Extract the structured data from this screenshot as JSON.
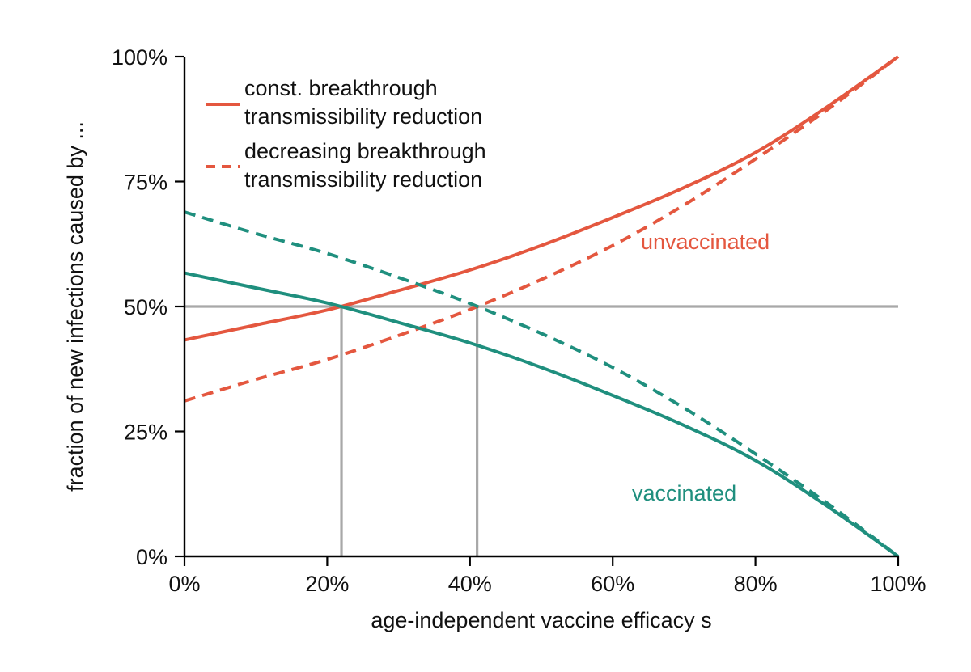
{
  "chart_data": {
    "type": "line",
    "title": "",
    "xlabel": "age-independent vaccine efficacy s",
    "ylabel": "fraction of new infections caused by ...",
    "xlim": [
      0,
      100
    ],
    "ylim": [
      0,
      100
    ],
    "x_ticks": [
      0,
      20,
      40,
      60,
      80,
      100
    ],
    "x_tick_labels": [
      "0%",
      "20%",
      "40%",
      "60%",
      "80%",
      "100%"
    ],
    "y_ticks": [
      0,
      25,
      50,
      75,
      100
    ],
    "y_tick_labels": [
      "0%",
      "25%",
      "50%",
      "75%",
      "100%"
    ],
    "grid": false,
    "legend_position": "top-left",
    "legend": [
      {
        "label_line1": "const. breakthrough",
        "label_line2": "transmissibility reduction",
        "style": "solid"
      },
      {
        "label_line1": "decreasing breakthrough",
        "label_line2": "transmissibility reduction",
        "style": "dashed"
      }
    ],
    "annotations": {
      "unvaccinated": "unvaccinated",
      "vaccinated": "vaccinated"
    },
    "colors": {
      "unvaccinated": "#e4573f",
      "vaccinated": "#1f8f7e",
      "reference": "#a8a8a8",
      "axis": "#000000"
    },
    "reference_lines": {
      "horizontal_y": 50,
      "vertical_x": [
        22,
        41
      ]
    },
    "x": [
      0,
      10,
      20,
      30,
      40,
      50,
      60,
      70,
      80,
      90,
      100
    ],
    "series": [
      {
        "group": "unvaccinated",
        "style": "solid",
        "values": [
          43.3,
          46.3,
          49.3,
          53.2,
          57.3,
          62.2,
          67.8,
          73.8,
          80.8,
          89.9,
          100
        ]
      },
      {
        "group": "unvaccinated",
        "style": "dashed",
        "values": [
          31.1,
          35.4,
          39.4,
          44.2,
          49.4,
          55.4,
          62.2,
          70.3,
          79.5,
          89.3,
          100
        ]
      },
      {
        "group": "vaccinated",
        "style": "solid",
        "values": [
          56.7,
          53.7,
          50.7,
          46.8,
          42.7,
          37.8,
          32.2,
          26.2,
          19.2,
          10.1,
          0
        ]
      },
      {
        "group": "vaccinated",
        "style": "dashed",
        "values": [
          68.9,
          64.6,
          60.6,
          55.8,
          50.6,
          44.6,
          37.8,
          29.7,
          20.5,
          10.7,
          0
        ]
      }
    ]
  }
}
